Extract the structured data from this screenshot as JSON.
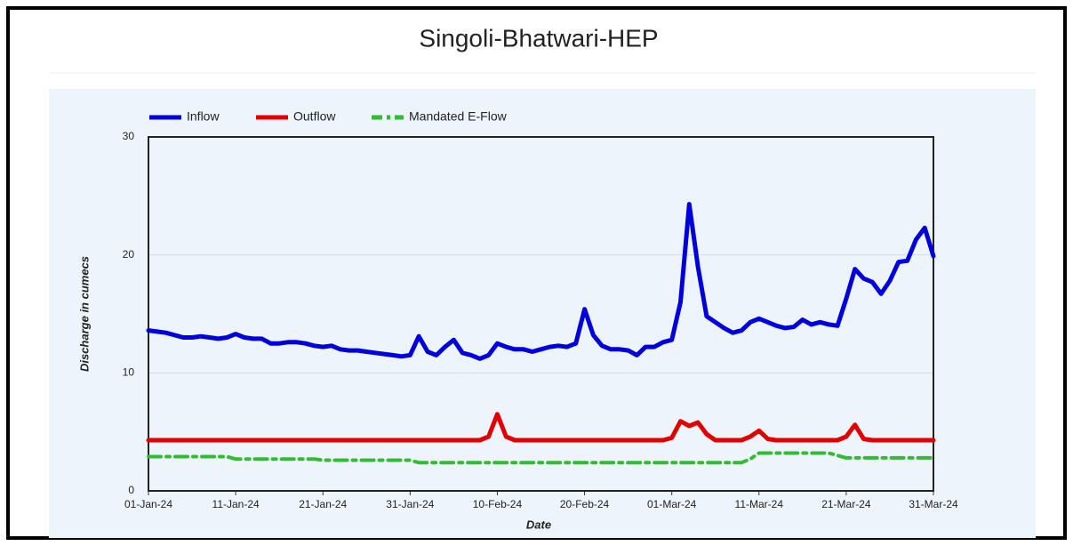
{
  "chart_data": {
    "type": "line",
    "title": "Singoli-Bhatwari-HEP",
    "xlabel": "Date",
    "ylabel": "Discharge in cumecs",
    "x": [
      "01-Jan-24",
      "02-Jan-24",
      "03-Jan-24",
      "04-Jan-24",
      "05-Jan-24",
      "06-Jan-24",
      "07-Jan-24",
      "08-Jan-24",
      "09-Jan-24",
      "10-Jan-24",
      "11-Jan-24",
      "12-Jan-24",
      "13-Jan-24",
      "14-Jan-24",
      "15-Jan-24",
      "16-Jan-24",
      "17-Jan-24",
      "18-Jan-24",
      "19-Jan-24",
      "20-Jan-24",
      "21-Jan-24",
      "22-Jan-24",
      "23-Jan-24",
      "24-Jan-24",
      "25-Jan-24",
      "26-Jan-24",
      "27-Jan-24",
      "28-Jan-24",
      "29-Jan-24",
      "30-Jan-24",
      "31-Jan-24",
      "01-Feb-24",
      "02-Feb-24",
      "03-Feb-24",
      "04-Feb-24",
      "05-Feb-24",
      "06-Feb-24",
      "07-Feb-24",
      "08-Feb-24",
      "09-Feb-24",
      "10-Feb-24",
      "11-Feb-24",
      "12-Feb-24",
      "13-Feb-24",
      "14-Feb-24",
      "15-Feb-24",
      "16-Feb-24",
      "17-Feb-24",
      "18-Feb-24",
      "19-Feb-24",
      "20-Feb-24",
      "21-Feb-24",
      "22-Feb-24",
      "23-Feb-24",
      "24-Feb-24",
      "25-Feb-24",
      "26-Feb-24",
      "27-Feb-24",
      "28-Feb-24",
      "29-Feb-24",
      "01-Mar-24",
      "02-Mar-24",
      "03-Mar-24",
      "04-Mar-24",
      "05-Mar-24",
      "06-Mar-24",
      "07-Mar-24",
      "08-Mar-24",
      "09-Mar-24",
      "10-Mar-24",
      "11-Mar-24",
      "12-Mar-24",
      "13-Mar-24",
      "14-Mar-24",
      "15-Mar-24",
      "16-Mar-24",
      "17-Mar-24",
      "18-Mar-24",
      "19-Mar-24",
      "20-Mar-24",
      "21-Mar-24",
      "22-Mar-24",
      "23-Mar-24",
      "24-Mar-24",
      "25-Mar-24",
      "26-Mar-24",
      "27-Mar-24",
      "28-Mar-24",
      "29-Mar-24",
      "30-Mar-24",
      "31-Mar-24"
    ],
    "series": [
      {
        "name": "Inflow",
        "color": "#0000dd",
        "dash": false,
        "values": [
          13.6,
          13.5,
          13.4,
          13.2,
          13.0,
          13.0,
          13.1,
          13.0,
          12.9,
          13.0,
          13.3,
          13.0,
          12.9,
          12.9,
          12.5,
          12.5,
          12.6,
          12.6,
          12.5,
          12.3,
          12.2,
          12.3,
          12.0,
          11.9,
          11.9,
          11.8,
          11.7,
          11.6,
          11.5,
          11.4,
          11.5,
          13.1,
          11.8,
          11.5,
          12.2,
          12.8,
          11.7,
          11.5,
          11.2,
          11.5,
          12.5,
          12.2,
          12.0,
          12.0,
          11.8,
          12.0,
          12.2,
          12.3,
          12.2,
          12.5,
          15.4,
          13.2,
          12.3,
          12.0,
          12.0,
          11.9,
          11.5,
          12.2,
          12.2,
          12.6,
          12.8,
          16.0,
          24.3,
          19.0,
          14.8,
          14.3,
          13.8,
          13.4,
          13.6,
          14.3,
          14.6,
          14.3,
          14.0,
          13.8,
          13.9,
          14.5,
          14.1,
          14.3,
          14.1,
          14.0,
          16.3,
          18.8,
          18.0,
          17.7,
          16.7,
          17.8,
          19.4,
          19.5,
          21.3,
          22.3,
          19.9
        ]
      },
      {
        "name": "Outflow",
        "color": "#e00000",
        "dash": false,
        "values": [
          4.3,
          4.3,
          4.3,
          4.3,
          4.3,
          4.3,
          4.3,
          4.3,
          4.3,
          4.3,
          4.3,
          4.3,
          4.3,
          4.3,
          4.3,
          4.3,
          4.3,
          4.3,
          4.3,
          4.3,
          4.3,
          4.3,
          4.3,
          4.3,
          4.3,
          4.3,
          4.3,
          4.3,
          4.3,
          4.3,
          4.3,
          4.3,
          4.3,
          4.3,
          4.3,
          4.3,
          4.3,
          4.3,
          4.3,
          4.6,
          6.5,
          4.6,
          4.3,
          4.3,
          4.3,
          4.3,
          4.3,
          4.3,
          4.3,
          4.3,
          4.3,
          4.3,
          4.3,
          4.3,
          4.3,
          4.3,
          4.3,
          4.3,
          4.3,
          4.3,
          4.5,
          5.9,
          5.5,
          5.8,
          4.8,
          4.3,
          4.3,
          4.3,
          4.3,
          4.6,
          5.1,
          4.4,
          4.3,
          4.3,
          4.3,
          4.3,
          4.3,
          4.3,
          4.3,
          4.3,
          4.6,
          5.6,
          4.4,
          4.3,
          4.3,
          4.3,
          4.3,
          4.3,
          4.3,
          4.3,
          4.3
        ]
      },
      {
        "name": "Mandated E-Flow",
        "color": "#33bb33",
        "dash": true,
        "values": [
          2.9,
          2.9,
          2.9,
          2.9,
          2.9,
          2.9,
          2.9,
          2.9,
          2.9,
          2.9,
          2.7,
          2.7,
          2.7,
          2.7,
          2.7,
          2.7,
          2.7,
          2.7,
          2.7,
          2.7,
          2.6,
          2.6,
          2.6,
          2.6,
          2.6,
          2.6,
          2.6,
          2.6,
          2.6,
          2.6,
          2.6,
          2.4,
          2.4,
          2.4,
          2.4,
          2.4,
          2.4,
          2.4,
          2.4,
          2.4,
          2.4,
          2.4,
          2.4,
          2.4,
          2.4,
          2.4,
          2.4,
          2.4,
          2.4,
          2.4,
          2.4,
          2.4,
          2.4,
          2.4,
          2.4,
          2.4,
          2.4,
          2.4,
          2.4,
          2.4,
          2.4,
          2.4,
          2.4,
          2.4,
          2.4,
          2.4,
          2.4,
          2.4,
          2.4,
          2.7,
          3.2,
          3.2,
          3.2,
          3.2,
          3.2,
          3.2,
          3.2,
          3.2,
          3.2,
          3.0,
          2.8,
          2.8,
          2.8,
          2.8,
          2.8,
          2.8,
          2.8,
          2.8,
          2.8,
          2.8,
          2.8
        ]
      }
    ],
    "xticks": [
      "01-Jan-24",
      "11-Jan-24",
      "21-Jan-24",
      "31-Jan-24",
      "10-Feb-24",
      "20-Feb-24",
      "01-Mar-24",
      "11-Mar-24",
      "21-Mar-24",
      "31-Mar-24"
    ],
    "ylim": [
      0,
      30
    ],
    "yticks": [
      0,
      10,
      20,
      30
    ],
    "grid": true,
    "legend": "top"
  }
}
